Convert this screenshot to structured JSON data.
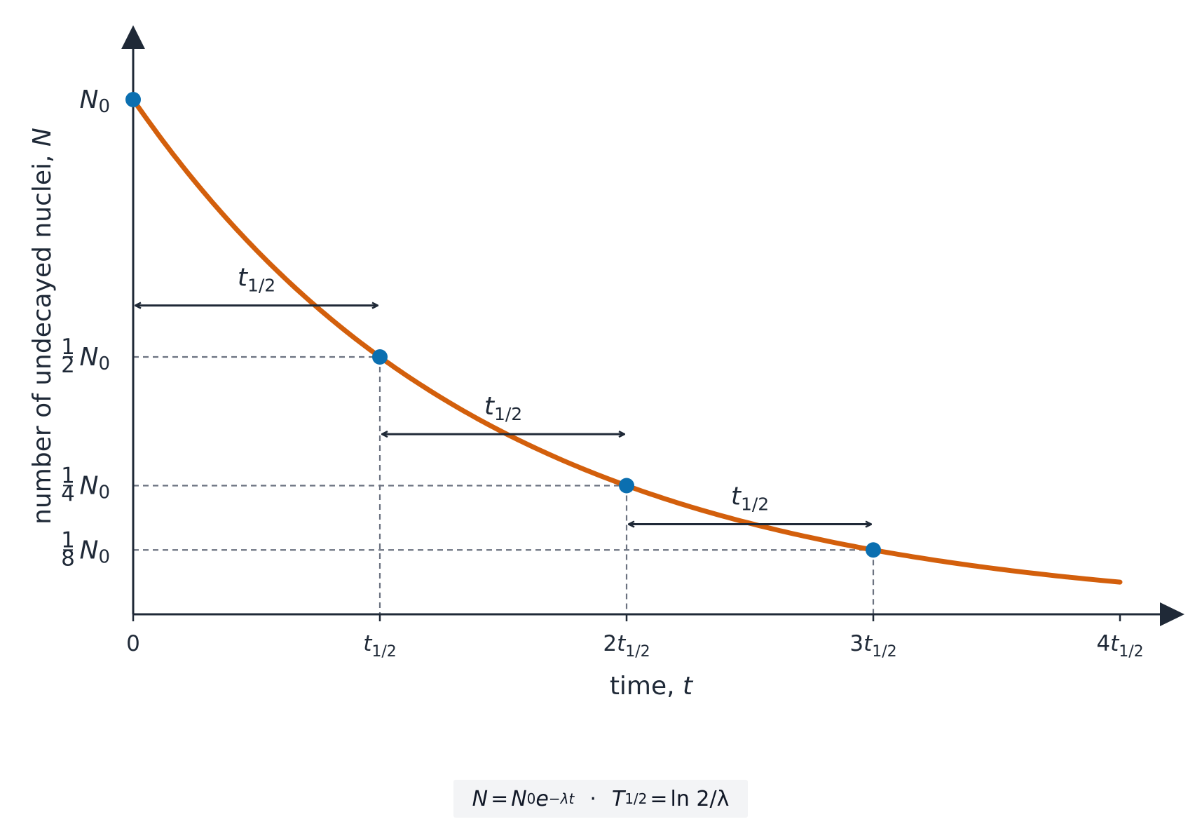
{
  "chart_data": {
    "type": "line",
    "title": "",
    "xlabel": {
      "prefix": "time, ",
      "var": "t"
    },
    "ylabel": {
      "prefix": "number of undecayed nuclei, ",
      "var": "N"
    },
    "x_unit": "t_1/2",
    "xlim": [
      0,
      4
    ],
    "ylim": [
      0,
      1
    ],
    "x_ticks": [
      {
        "value": 0,
        "coef": "0",
        "var": "",
        "sub": ""
      },
      {
        "value": 1,
        "coef": "",
        "var": "t",
        "sub": "1/2"
      },
      {
        "value": 2,
        "coef": "2",
        "var": "t",
        "sub": "1/2"
      },
      {
        "value": 3,
        "coef": "3",
        "var": "t",
        "sub": "1/2"
      },
      {
        "value": 4,
        "coef": "4",
        "var": "t",
        "sub": "1/2"
      }
    ],
    "y_ticks": [
      {
        "value": 1,
        "num": "",
        "den": "",
        "var": "N",
        "sub": "0"
      },
      {
        "value": 0.5,
        "num": "1",
        "den": "2",
        "var": "N",
        "sub": "0"
      },
      {
        "value": 0.25,
        "num": "1",
        "den": "4",
        "var": "N",
        "sub": "0"
      },
      {
        "value": 0.125,
        "num": "1",
        "den": "8",
        "var": "N",
        "sub": "0"
      }
    ],
    "series": [
      {
        "function": "N = N0 * 0.5^(t / t_1/2)",
        "x_start": 0,
        "x_end": 4,
        "color": "#d35f0c"
      }
    ],
    "points": [
      {
        "x": 0,
        "y": 1
      },
      {
        "x": 1,
        "y": 0.5
      },
      {
        "x": 2,
        "y": 0.25
      },
      {
        "x": 3,
        "y": 0.125
      }
    ],
    "point_color": "#0b6fb0",
    "guide_color": "#6b7280",
    "axis_color": "#1f2937",
    "half_life_arrows": [
      {
        "x_from": 0,
        "x_to": 1,
        "y": 0.6,
        "var": "t",
        "sub": "1/2"
      },
      {
        "x_from": 1,
        "x_to": 2,
        "y": 0.35,
        "var": "t",
        "sub": "1/2"
      },
      {
        "x_from": 2,
        "x_to": 3,
        "y": 0.175,
        "var": "t",
        "sub": "1/2"
      }
    ]
  },
  "formula": {
    "lhs": "N",
    "eq1": "=",
    "n0": "N",
    "n0_sub": "0",
    "exp_base": "e",
    "exp_power": "−λt",
    "separator": "·",
    "t_half": "T",
    "t_half_sub": "1/2",
    "eq2": "=",
    "rhs": "ln 2/λ"
  }
}
